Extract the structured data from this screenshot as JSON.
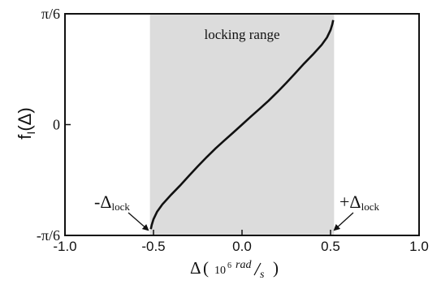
{
  "chart_data": {
    "type": "line",
    "title": "",
    "xlabel": "Δ( 10⁶ rad/s )",
    "xlabel_parts": {
      "delta": "Δ",
      "open": "(",
      "power": "10",
      "exp": "6",
      "num": "rad",
      "den": "s",
      "close": ")"
    },
    "ylabel": "f_I(Δ)",
    "ylabel_parts": {
      "f": "f",
      "sub": "I",
      "rest": "(Δ)"
    },
    "xlim": [
      -1.0,
      1.0
    ],
    "ylim": [
      -0.5236,
      0.5236
    ],
    "x_ticks": [
      {
        "value": -1.0,
        "label": "-1.0"
      },
      {
        "value": -0.5,
        "label": "-0.5"
      },
      {
        "value": 0.0,
        "label": "0.0"
      },
      {
        "value": 0.5,
        "label": "0.5"
      },
      {
        "value": 1.0,
        "label": "1.0"
      }
    ],
    "y_ticks": [
      {
        "value": -0.5236,
        "label": "-π/6"
      },
      {
        "value": 0.0,
        "label": "0"
      },
      {
        "value": 0.5236,
        "label": "π/6"
      }
    ],
    "shaded_region": {
      "x_range": [
        -0.52,
        0.52
      ],
      "label": "locking range",
      "color": "#dcdcdc"
    },
    "series": [
      {
        "color": "#111111",
        "x": [
          -0.515,
          -0.51,
          -0.5,
          -0.48,
          -0.45,
          -0.4,
          -0.35,
          -0.3,
          -0.25,
          -0.2,
          -0.15,
          -0.1,
          -0.05,
          0.0,
          0.05,
          0.1,
          0.15,
          0.2,
          0.25,
          0.3,
          0.35,
          0.4,
          0.45,
          0.48,
          0.5,
          0.51,
          0.515
        ],
        "y": [
          -0.494,
          -0.474,
          -0.447,
          -0.412,
          -0.377,
          -0.331,
          -0.288,
          -0.242,
          -0.197,
          -0.154,
          -0.113,
          -0.075,
          -0.038,
          0.0,
          0.038,
          0.075,
          0.113,
          0.154,
          0.197,
          0.242,
          0.288,
          0.331,
          0.377,
          0.412,
          0.447,
          0.474,
          0.494
        ]
      }
    ],
    "annotations": [
      {
        "text_prefix": "-",
        "text_main": "Δ",
        "text_sub": "lock",
        "points_to_x": -0.515
      },
      {
        "text_prefix": "+",
        "text_main": "Δ",
        "text_sub": "lock",
        "points_to_x": 0.515
      }
    ],
    "grid": false,
    "legend": "none"
  }
}
